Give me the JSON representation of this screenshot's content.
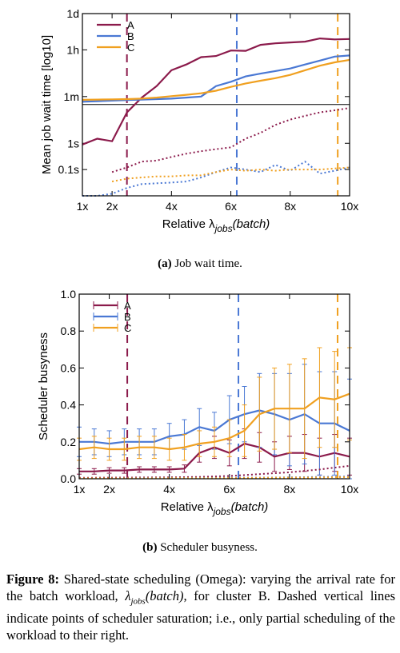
{
  "figure": {
    "label": "Figure 8:",
    "text_1": "Shared-state scheduling (Omega): varying the arrival rate for the batch workload,",
    "lambda": "λ",
    "sub": "jobs",
    "batch": "(batch)",
    "text_2": ", for cluster B. Dashed vertical lines indicate points of scheduler saturation; i.e., only partial scheduling of the workload to their right."
  },
  "subcaption_a": {
    "label": "(a)",
    "text": "Job wait time."
  },
  "subcaption_b": {
    "label": "(b)",
    "text": "Scheduler busyness."
  },
  "colors": {
    "A": "#8b1a4b",
    "B": "#4a78d4",
    "C": "#f0a020"
  },
  "chart_data": [
    {
      "type": "line",
      "ylabel": "Mean job wait time [log10]",
      "xlabel_prefix": "Relative λ",
      "xlabel_sub": "jobs",
      "xlabel_suffix": "(batch)",
      "x_scale": "linear",
      "y_scale": "log",
      "xlim": [
        1,
        10
      ],
      "ylim_seconds": [
        0.01,
        86400
      ],
      "x_ticks": [
        {
          "v": 1,
          "label": "1x"
        },
        {
          "v": 2,
          "label": "2x"
        },
        {
          "v": 4,
          "label": "4x"
        },
        {
          "v": 6,
          "label": "6x"
        },
        {
          "v": 8,
          "label": "8x"
        },
        {
          "v": 10,
          "label": "10x"
        }
      ],
      "y_ticks": [
        {
          "v": 86400,
          "label": "1d"
        },
        {
          "v": 3600,
          "label": "1h"
        },
        {
          "v": 60,
          "label": "1m"
        },
        {
          "v": 1,
          "label": "1s"
        },
        {
          "v": 0.1,
          "label": "0.1s"
        }
      ],
      "legend": [
        "A",
        "B",
        "C"
      ],
      "legend_position": "top-left",
      "series": [
        {
          "name": "A",
          "style": "solid",
          "x": [
            1,
            1.5,
            2,
            2.5,
            3,
            3.5,
            4,
            4.5,
            5,
            5.5,
            6,
            6.5,
            7,
            7.5,
            8,
            8.5,
            9,
            9.5,
            10
          ],
          "y": [
            0.9,
            1.5,
            1.2,
            15,
            55,
            150,
            600,
            1000,
            1900,
            2100,
            3400,
            3300,
            5600,
            6400,
            6900,
            7400,
            9800,
            9000,
            9300
          ]
        },
        {
          "name": "B",
          "style": "solid",
          "x": [
            1,
            1.5,
            2,
            2.5,
            3,
            3.5,
            4,
            4.5,
            5,
            5.5,
            6,
            6.5,
            7,
            7.5,
            8,
            8.5,
            9,
            9.5,
            10
          ],
          "y": [
            38,
            40,
            42,
            44,
            46,
            48,
            50,
            55,
            60,
            150,
            220,
            350,
            450,
            560,
            700,
            1000,
            1400,
            2000,
            2200
          ]
        },
        {
          "name": "C",
          "style": "solid",
          "x": [
            1,
            1.5,
            2,
            2.5,
            3,
            3.5,
            4,
            4.5,
            5,
            5.5,
            6,
            6.5,
            7,
            7.5,
            8,
            8.5,
            9,
            9.5,
            10
          ],
          "y": [
            45,
            46,
            47,
            48,
            50,
            55,
            62,
            70,
            80,
            100,
            140,
            190,
            240,
            300,
            400,
            600,
            900,
            1200,
            1500
          ]
        },
        {
          "name": "A",
          "style": "dotted",
          "x": [
            2,
            2.5,
            3,
            3.5,
            4,
            4.5,
            5,
            5.5,
            6,
            6.5,
            7,
            7.5,
            8,
            8.5,
            9,
            9.5,
            10
          ],
          "y": [
            0.08,
            0.12,
            0.2,
            0.22,
            0.3,
            0.4,
            0.5,
            0.6,
            0.7,
            1.5,
            2.5,
            5,
            8,
            11,
            15,
            18,
            22
          ]
        },
        {
          "name": "B",
          "style": "dotted",
          "x": [
            1,
            1.5,
            2,
            2.5,
            3,
            3.5,
            4,
            4.5,
            5,
            5.5,
            6,
            6.5,
            7,
            7.5,
            8,
            8.5,
            9,
            9.5,
            10
          ],
          "y": [
            0.003,
            0.006,
            0.012,
            0.02,
            0.028,
            0.03,
            0.032,
            0.035,
            0.05,
            0.08,
            0.12,
            0.1,
            0.08,
            0.15,
            0.09,
            0.2,
            0.07,
            0.09,
            0.12
          ]
        },
        {
          "name": "C",
          "style": "dotted",
          "x": [
            2,
            2.5,
            3,
            3.5,
            4,
            4.5,
            5,
            5.5,
            6,
            6.5,
            7,
            7.5,
            8,
            8.5,
            9,
            9.5,
            10
          ],
          "y": [
            0.035,
            0.045,
            0.05,
            0.055,
            0.055,
            0.06,
            0.06,
            0.08,
            0.1,
            0.09,
            0.1,
            0.09,
            0.1,
            0.1,
            0.1,
            0.11,
            0.12
          ]
        }
      ],
      "vlines": [
        {
          "name": "A",
          "x": 2.5
        },
        {
          "name": "B",
          "x": 6.2
        },
        {
          "name": "C",
          "x": 9.6
        }
      ],
      "hline_seconds": 30
    },
    {
      "type": "line",
      "ylabel": "Scheduler busyness",
      "xlabel_prefix": "Relative λ",
      "xlabel_sub": "jobs",
      "xlabel_suffix": "(batch)",
      "xlim": [
        1,
        10
      ],
      "ylim": [
        0,
        1
      ],
      "x_ticks": [
        {
          "v": 1,
          "label": "1x"
        },
        {
          "v": 2,
          "label": "2x"
        },
        {
          "v": 4,
          "label": "4x"
        },
        {
          "v": 6,
          "label": "6x"
        },
        {
          "v": 8,
          "label": "8x"
        },
        {
          "v": 10,
          "label": "10x"
        }
      ],
      "y_ticks": [
        {
          "v": 0,
          "label": "0.0"
        },
        {
          "v": 0.2,
          "label": "0.2"
        },
        {
          "v": 0.4,
          "label": "0.4"
        },
        {
          "v": 0.6,
          "label": "0.6"
        },
        {
          "v": 0.8,
          "label": "0.8"
        },
        {
          "v": 1,
          "label": "1.0"
        }
      ],
      "legend": [
        "A",
        "B",
        "C"
      ],
      "legend_position": "top-left",
      "series": [
        {
          "name": "A",
          "style": "solid",
          "x": [
            1,
            1.5,
            2,
            2.5,
            3,
            3.5,
            4,
            4.5,
            5,
            5.5,
            6,
            6.5,
            7,
            7.5,
            8,
            8.5,
            9,
            9.5,
            10
          ],
          "y": [
            0.04,
            0.04,
            0.045,
            0.045,
            0.05,
            0.05,
            0.05,
            0.055,
            0.14,
            0.17,
            0.14,
            0.19,
            0.17,
            0.12,
            0.14,
            0.14,
            0.12,
            0.14,
            0.12
          ],
          "err": [
            0.015,
            0.015,
            0.015,
            0.015,
            0.015,
            0.015,
            0.015,
            0.02,
            0.05,
            0.06,
            0.07,
            0.08,
            0.08,
            0.08,
            0.09,
            0.1,
            0.1,
            0.1,
            0.1
          ]
        },
        {
          "name": "B",
          "style": "solid",
          "x": [
            1,
            1.5,
            2,
            2.5,
            3,
            3.5,
            4,
            4.5,
            5,
            5.5,
            6,
            6.5,
            7,
            7.5,
            8,
            8.5,
            9,
            9.5,
            10
          ],
          "y": [
            0.2,
            0.2,
            0.19,
            0.2,
            0.2,
            0.2,
            0.23,
            0.24,
            0.28,
            0.26,
            0.32,
            0.35,
            0.37,
            0.35,
            0.32,
            0.35,
            0.3,
            0.3,
            0.26
          ],
          "err": [
            0.08,
            0.07,
            0.07,
            0.07,
            0.07,
            0.07,
            0.07,
            0.08,
            0.1,
            0.1,
            0.13,
            0.15,
            0.2,
            0.22,
            0.25,
            0.27,
            0.28,
            0.28,
            0.28
          ]
        },
        {
          "name": "C",
          "style": "solid",
          "x": [
            1,
            1.5,
            2,
            2.5,
            3,
            3.5,
            4,
            4.5,
            5,
            5.5,
            6,
            6.5,
            7,
            7.5,
            8,
            8.5,
            9,
            9.5,
            10
          ],
          "y": [
            0.16,
            0.17,
            0.16,
            0.16,
            0.17,
            0.17,
            0.16,
            0.17,
            0.19,
            0.2,
            0.22,
            0.26,
            0.35,
            0.38,
            0.38,
            0.38,
            0.44,
            0.43,
            0.46
          ],
          "err": [
            0.06,
            0.06,
            0.06,
            0.06,
            0.06,
            0.06,
            0.06,
            0.07,
            0.07,
            0.08,
            0.1,
            0.14,
            0.2,
            0.22,
            0.24,
            0.27,
            0.27,
            0.26,
            0.25
          ]
        },
        {
          "name": "A",
          "style": "dotted",
          "x": [
            1,
            2,
            3,
            4,
            5,
            6,
            7,
            8,
            9,
            10
          ],
          "y": [
            0.005,
            0.006,
            0.007,
            0.008,
            0.01,
            0.015,
            0.025,
            0.035,
            0.05,
            0.07
          ]
        },
        {
          "name": "B",
          "style": "dotted",
          "x": [
            1,
            2,
            3,
            4,
            5,
            6,
            7,
            8,
            9,
            10
          ],
          "y": [
            0.002,
            0.002,
            0.003,
            0.003,
            0.004,
            0.005,
            0.006,
            0.008,
            0.01,
            0.012
          ]
        },
        {
          "name": "C",
          "style": "dotted",
          "x": [
            1,
            2,
            3,
            4,
            5,
            6,
            7,
            8,
            9,
            10
          ],
          "y": [
            0.002,
            0.002,
            0.002,
            0.003,
            0.003,
            0.004,
            0.005,
            0.006,
            0.007,
            0.009
          ]
        }
      ],
      "vlines": [
        {
          "name": "A",
          "x": 2.6
        },
        {
          "name": "B",
          "x": 6.3
        },
        {
          "name": "C",
          "x": 9.6
        }
      ]
    }
  ]
}
